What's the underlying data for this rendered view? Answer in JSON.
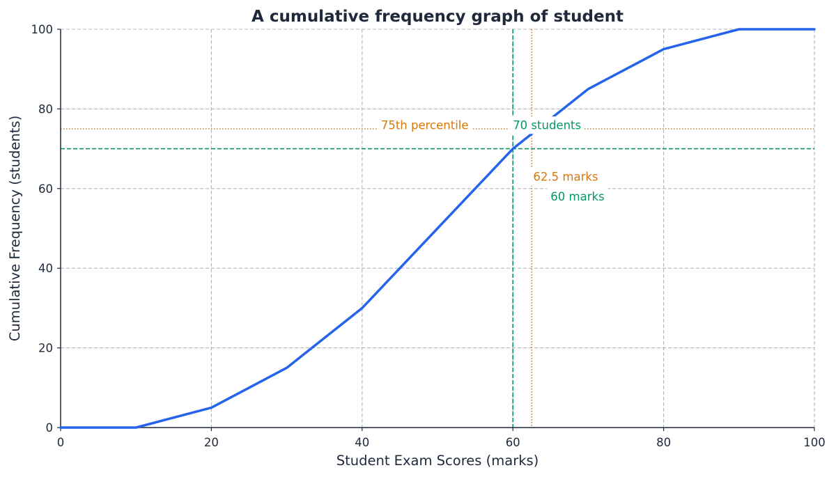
{
  "chart_data": {
    "type": "line",
    "title": "A cumulative frequency graph of student",
    "xlabel": "Student Exam Scores (marks)",
    "ylabel": "Cumulative Frequency (students)",
    "xlim": [
      0,
      100
    ],
    "ylim": [
      0,
      100
    ],
    "xticks": [
      0,
      20,
      40,
      60,
      80,
      100
    ],
    "yticks": [
      0,
      20,
      40,
      60,
      80,
      100
    ],
    "grid": true,
    "series": [
      {
        "name": "Cumulative frequency",
        "color": "#2563eb",
        "x": [
          0,
          10,
          20,
          30,
          40,
          50,
          60,
          70,
          80,
          90,
          100
        ],
        "y": [
          0,
          0,
          5,
          15,
          30,
          50,
          70,
          85,
          95,
          100,
          100
        ]
      }
    ],
    "reference_lines": [
      {
        "orientation": "horizontal",
        "value": 75,
        "style": "dotted",
        "color": "#d97706",
        "label": "75th percentile"
      },
      {
        "orientation": "vertical",
        "value": 62.5,
        "style": "dotted",
        "color": "#d97706",
        "label": "62.5 marks"
      },
      {
        "orientation": "horizontal",
        "value": 70,
        "style": "dashed",
        "color": "#059669",
        "label": "70 students"
      },
      {
        "orientation": "vertical",
        "value": 60,
        "style": "dashed",
        "color": "#059669",
        "label": "60 marks"
      }
    ],
    "annotations": [
      {
        "text": "75th percentile",
        "x": 42.5,
        "y": 76,
        "color": "#d97706"
      },
      {
        "text": "70 students",
        "x": 60,
        "y": 76,
        "color": "#059669"
      },
      {
        "text": "62.5 marks",
        "x": 62.7,
        "y": 63,
        "color": "#d97706"
      },
      {
        "text": "60 marks",
        "x": 65,
        "y": 58,
        "color": "#059669"
      }
    ]
  },
  "colors": {
    "text": "#1e293b",
    "grid": "#9ca3af",
    "line": "#2563eb",
    "orange": "#d97706",
    "green": "#059669"
  }
}
